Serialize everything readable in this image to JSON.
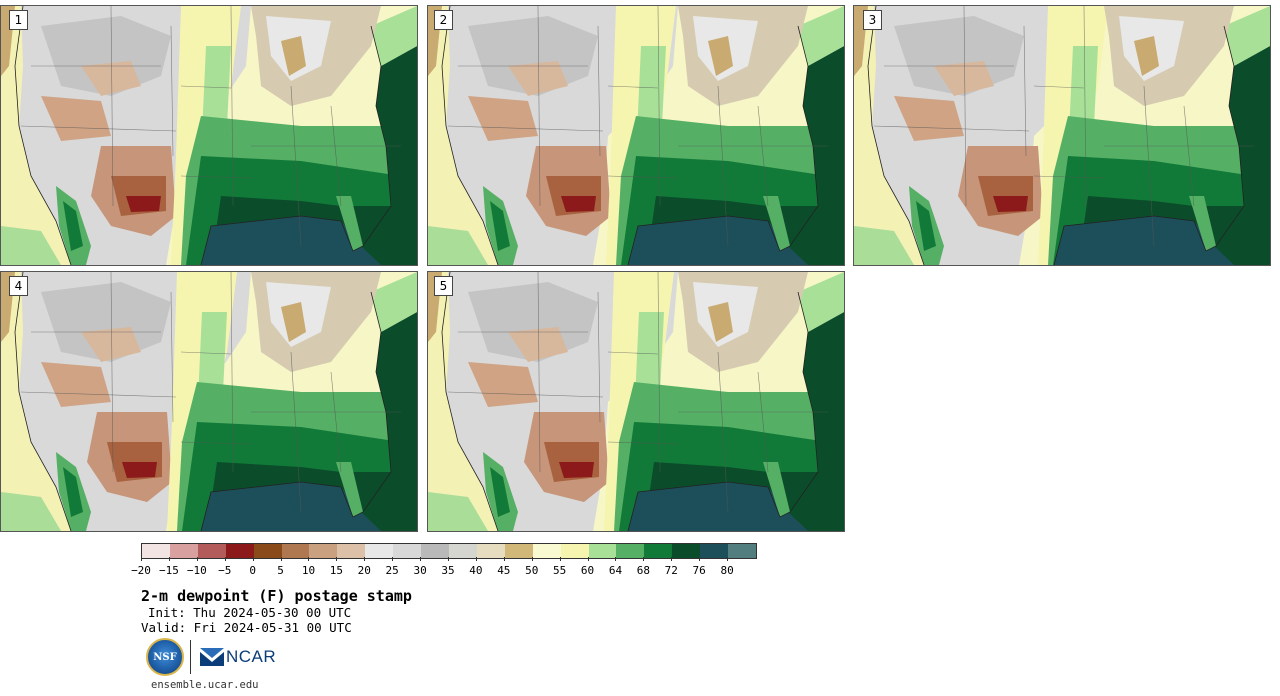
{
  "panels": [
    {
      "label": "1"
    },
    {
      "label": "2"
    },
    {
      "label": "3"
    },
    {
      "label": "4"
    },
    {
      "label": "5"
    }
  ],
  "colorbar": {
    "ticks": [
      "−20",
      "−15",
      "−10",
      "−5",
      "0",
      "5",
      "10",
      "15",
      "20",
      "25",
      "30",
      "35",
      "40",
      "45",
      "50",
      "55",
      "60",
      "64",
      "68",
      "72",
      "76",
      "80"
    ],
    "colors": [
      "#f3e4e4",
      "#d9a0a0",
      "#b35a5a",
      "#8c1a1a",
      "#8a4a1a",
      "#b07850",
      "#c9a080",
      "#dcc0a8",
      "#e8e8e8",
      "#d8d8d8",
      "#b9b9b9",
      "#d6d6d0",
      "#e6dcc0",
      "#d2b878",
      "#fafad2",
      "#f5f5b0",
      "#a8e098",
      "#55b065",
      "#127a38",
      "#0b4d2a",
      "#1d4f5a",
      "#537e80"
    ]
  },
  "title": "2-m dewpoint (F) postage stamp",
  "init": "Init: Thu 2024-05-30 00 UTC",
  "valid": "Valid: Fri 2024-05-31 00 UTC",
  "logos": {
    "nsf": "NSF",
    "ncar": "NCAR"
  },
  "website": "ensemble.ucar.edu"
}
